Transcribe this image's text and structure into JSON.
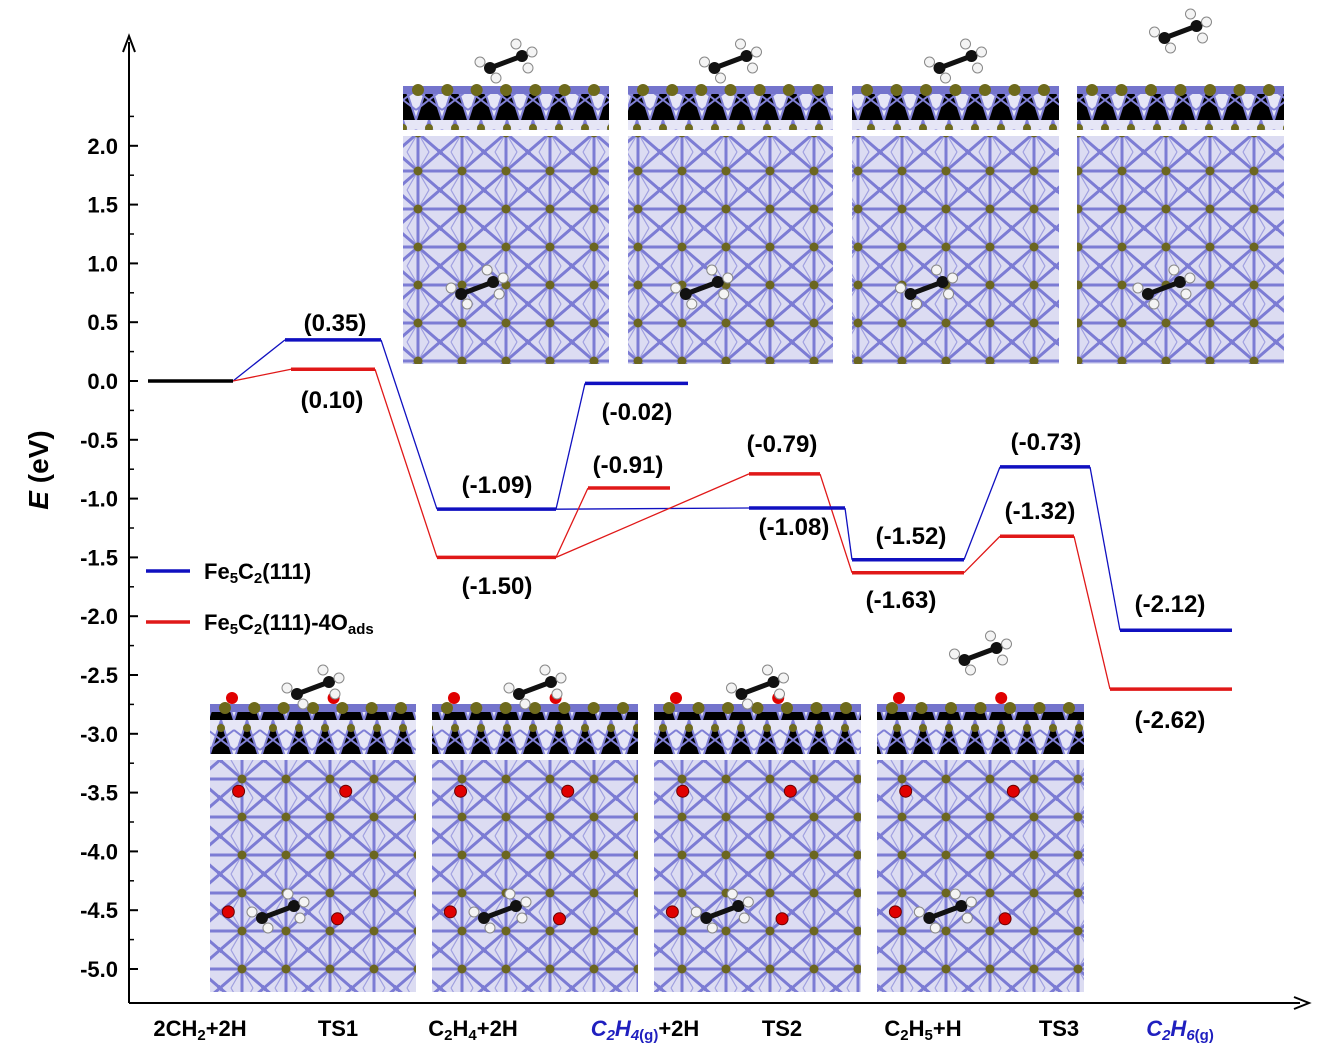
{
  "chart_data": {
    "type": "line",
    "y_axis": {
      "label_italic": "E",
      "label_unit": " (eV)",
      "ylim": [
        -5.35,
        2.6
      ],
      "ticks": [
        "2.0",
        "1.5",
        "1.0",
        "0.5",
        "0.0",
        "-0.5",
        "-1.0",
        "-1.5",
        "-2.0",
        "-2.5",
        "-3.0",
        "-3.5",
        "-4.0",
        "-4.5",
        "-5.0"
      ],
      "tick_values": [
        2.0,
        1.5,
        1.0,
        0.5,
        0.0,
        -0.5,
        -1.0,
        -1.5,
        -2.0,
        -2.5,
        -3.0,
        -3.5,
        -4.0,
        -4.5,
        -5.0
      ]
    },
    "categories": [
      {
        "parts": [
          {
            "t": "2CH"
          },
          {
            "t": "2",
            "sub": true
          },
          {
            "t": "+2H"
          }
        ],
        "color": "#000000"
      },
      {
        "parts": [
          {
            "t": "TS1"
          }
        ],
        "color": "#000000"
      },
      {
        "parts": [
          {
            "t": "C"
          },
          {
            "t": "2",
            "sub": true
          },
          {
            "t": "H"
          },
          {
            "t": "4",
            "sub": true
          },
          {
            "t": "+2H"
          }
        ],
        "color": "#000000"
      },
      {
        "parts": [
          {
            "t": "C",
            "italic": true
          },
          {
            "t": "2",
            "sub": true,
            "italic": true
          },
          {
            "t": "H",
            "italic": true
          },
          {
            "t": "4",
            "sub": true,
            "italic": true
          },
          {
            "t": "(g)",
            "sub": true
          },
          {
            "t": "+2H",
            "color": "#000000"
          }
        ],
        "color": "#1f1fbf"
      },
      {
        "parts": [
          {
            "t": "TS2"
          }
        ],
        "color": "#000000"
      },
      {
        "parts": [
          {
            "t": "C"
          },
          {
            "t": "2",
            "sub": true
          },
          {
            "t": "H"
          },
          {
            "t": "5",
            "sub": true
          },
          {
            "t": "+H"
          }
        ],
        "color": "#000000"
      },
      {
        "parts": [
          {
            "t": "TS3"
          }
        ],
        "color": "#000000"
      },
      {
        "parts": [
          {
            "t": "C",
            "italic": true
          },
          {
            "t": "2",
            "sub": true,
            "italic": true
          },
          {
            "t": "H",
            "italic": true
          },
          {
            "t": "6",
            "sub": true,
            "italic": true
          },
          {
            "t": "(g)",
            "sub": true
          }
        ],
        "color": "#1f1fbf"
      }
    ],
    "series": [
      {
        "legend_parts": [
          {
            "t": "Fe"
          },
          {
            "t": "5",
            "sub": true
          },
          {
            "t": "C"
          },
          {
            "t": "2",
            "sub": true
          },
          {
            "t": "(111)"
          }
        ],
        "color": "#1010c0",
        "values": [
          0.0,
          0.35,
          -1.09,
          -0.02,
          -1.08,
          -1.52,
          -0.73,
          -2.12
        ],
        "labels": [
          "",
          "(0.35)",
          "(-1.09)",
          "(-0.02)",
          "(-1.08)",
          "(-1.52)",
          "(-0.73)",
          "(-2.12)"
        ]
      },
      {
        "legend_parts": [
          {
            "t": "Fe"
          },
          {
            "t": "5",
            "sub": true
          },
          {
            "t": "C"
          },
          {
            "t": "2",
            "sub": true
          },
          {
            "t": "(111)-4O"
          },
          {
            "t": "ads",
            "sub": true
          }
        ],
        "color": "#e01818",
        "values": [
          0.0,
          0.1,
          -1.5,
          -0.91,
          -0.79,
          -1.63,
          -1.32,
          -2.62
        ],
        "labels": [
          "",
          "(0.10)",
          "(-1.50)",
          "(-0.91)",
          "(-0.79)",
          "(-1.63)",
          "(-1.32)",
          "(-2.62)"
        ]
      }
    ],
    "start_level": {
      "value": 0.0,
      "color": "#000000"
    },
    "grid": false,
    "legend_position": "left-middle",
    "insets": {
      "top_row": "Fe5C2(111) adsorption structures: 2CH2+2H, TS1, C2H4+2H / TS2, C2H5+H / TS3, C2H6(g)",
      "bottom_row": "Fe5C2(111)-4Oads adsorption structures",
      "colors": {
        "fe": "#8282d8",
        "c_surface": "#6e6a1c",
        "carbon": "#111111",
        "hydrogen": "#f2f2f2",
        "oxygen": "#e00000"
      }
    }
  }
}
